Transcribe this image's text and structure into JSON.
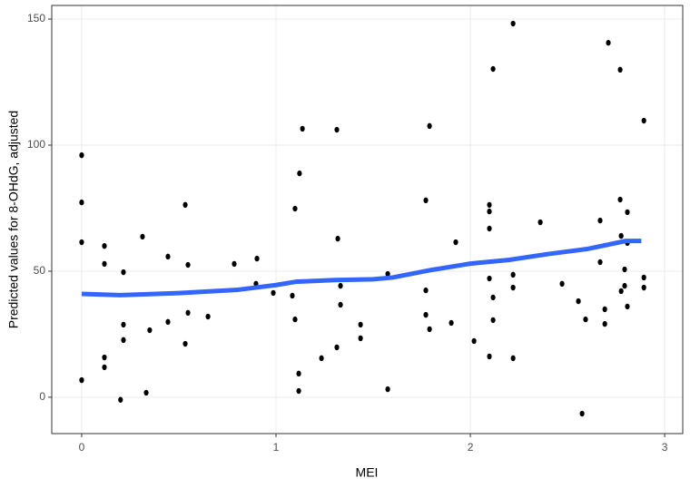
{
  "chart_data": {
    "type": "scatter",
    "x_label": "MEI",
    "y_label": "Predicted values for  8-OHdG, adjusted",
    "xlim": [
      -0.154,
      3.093
    ],
    "ylim": [
      -14.4,
      155.4
    ],
    "xticks": [
      0,
      1,
      2,
      3
    ],
    "yticks": [
      0,
      50,
      100,
      150
    ],
    "grid": true,
    "color": "#000000",
    "x": [
      0,
      0,
      0,
      0,
      0.117,
      0.117,
      0.117,
      0.117,
      0.2,
      0.215,
      0.215,
      0.215,
      0.313,
      0.332,
      0.35,
      0.444,
      0.444,
      0.533,
      0.547,
      0.547,
      0.533,
      0.65,
      0.785,
      0.897,
      0.902,
      0.986,
      1.084,
      1.098,
      1.098,
      1.121,
      1.136,
      1.117,
      1.117,
      1.234,
      1.313,
      1.318,
      1.332,
      1.332,
      1.313,
      1.435,
      1.435,
      1.575,
      1.575,
      1.771,
      1.771,
      1.771,
      1.79,
      1.79,
      1.902,
      1.925,
      2.019,
      2.098,
      2.098,
      2.098,
      2.098,
      2.098,
      2.117,
      2.117,
      2.117,
      2.22,
      2.22,
      2.22,
      2.22,
      2.36,
      2.472,
      2.556,
      2.575,
      2.593,
      2.668,
      2.668,
      2.692,
      2.692,
      2.71,
      2.771,
      2.771,
      2.776,
      2.776,
      2.794,
      2.794,
      2.808,
      2.808,
      2.808,
      2.893,
      2.893,
      2.893
    ],
    "values": [
      96,
      77.3,
      61.5,
      6.8,
      60,
      52.9,
      15.8,
      11.9,
      -1,
      49.6,
      28.8,
      22.7,
      63.7,
      1.8,
      26.6,
      55.8,
      29.9,
      76.3,
      52.5,
      33.5,
      21.2,
      32,
      52.9,
      45,
      55,
      41.4,
      40.3,
      74.8,
      30.9,
      88.8,
      106.5,
      9.4,
      2.5,
      15.5,
      106.1,
      62.9,
      44.2,
      36.7,
      19.8,
      28.8,
      23.4,
      48.9,
      3.2,
      78.1,
      42.4,
      32.7,
      107.6,
      27,
      29.5,
      61.5,
      22.3,
      76.3,
      73.7,
      66.9,
      47.1,
      16.2,
      130.2,
      39.6,
      30.6,
      148.2,
      48.6,
      43.5,
      15.5,
      69.4,
      45,
      38.1,
      -6.5,
      30.9,
      70.1,
      53.6,
      34.9,
      29.1,
      140.6,
      129.9,
      78.4,
      64,
      42.1,
      50.7,
      44.2,
      73.4,
      61.2,
      36,
      109.7,
      47.5,
      43.5
    ],
    "trend": {
      "color": "#3366ff",
      "x": [
        0,
        0.2,
        0.5,
        0.8,
        1.0,
        1.1,
        1.3,
        1.5,
        1.6,
        1.8,
        2.0,
        2.2,
        2.4,
        2.6,
        2.8,
        2.88
      ],
      "values": [
        41,
        40.5,
        41.3,
        42.6,
        44.5,
        45.8,
        46.5,
        46.8,
        47.5,
        50.5,
        53,
        54.5,
        56.8,
        58.8,
        62,
        62
      ]
    }
  }
}
